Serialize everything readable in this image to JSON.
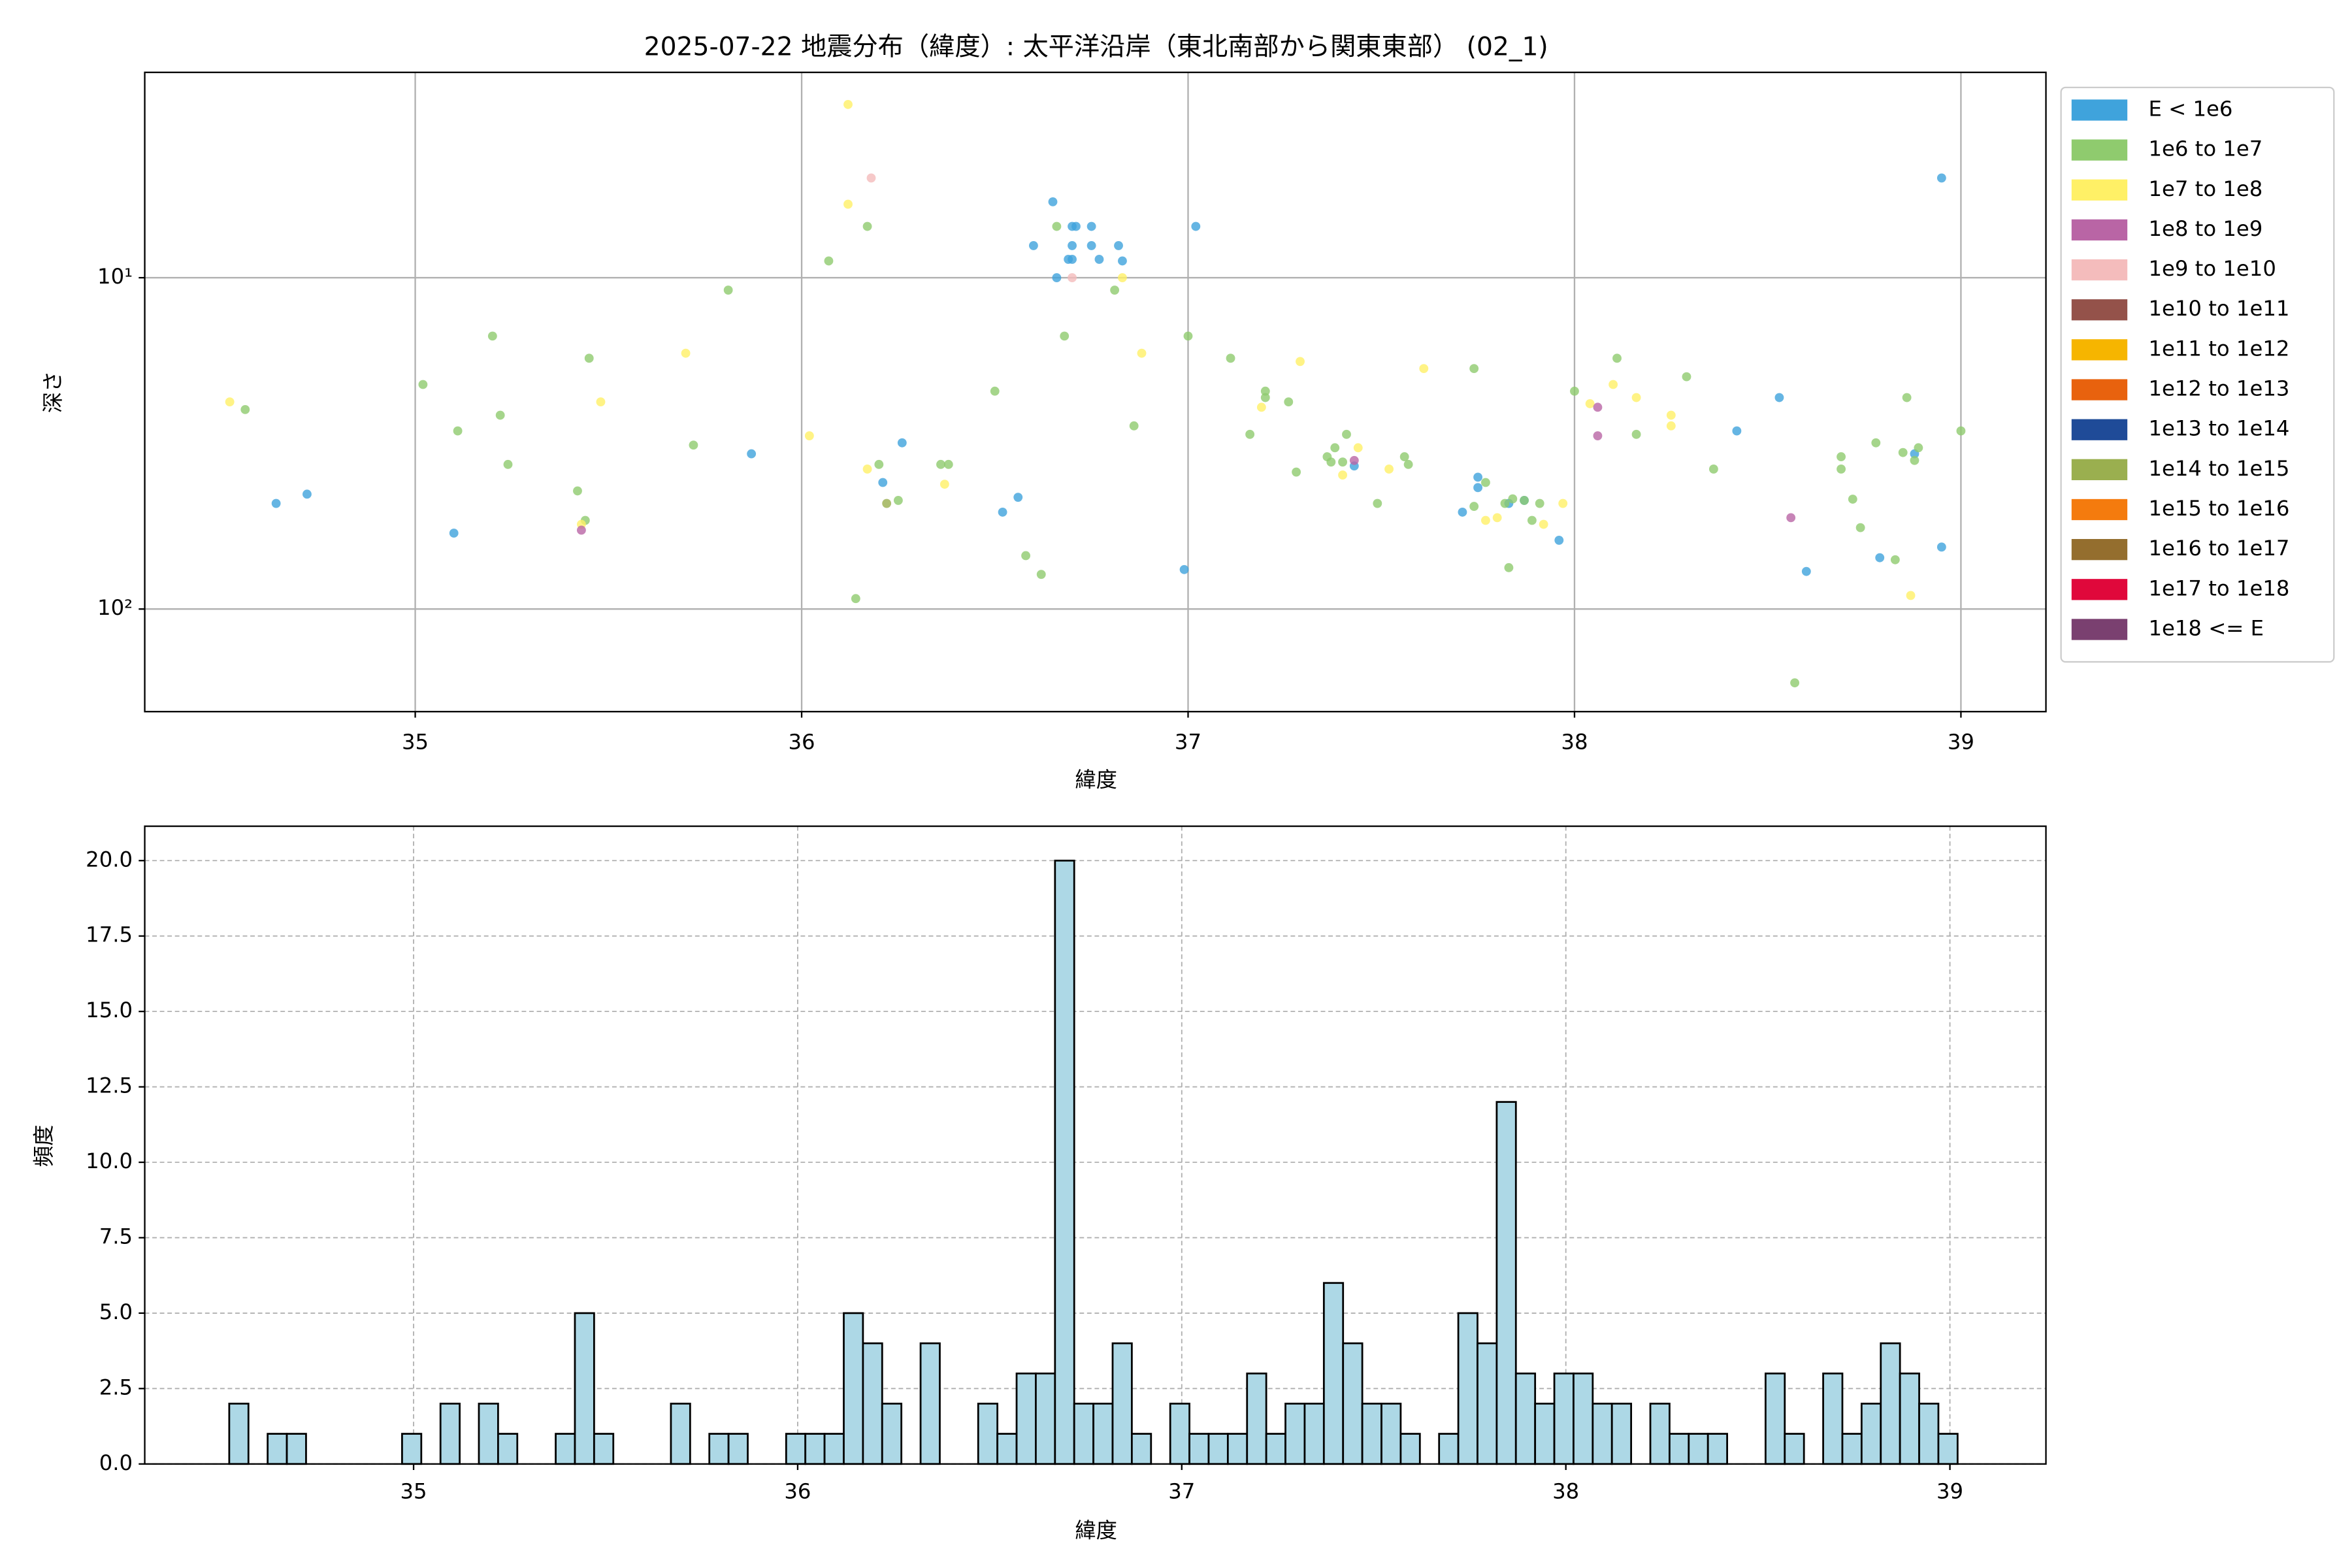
{
  "chart_data": [
    {
      "type": "scatter",
      "title": "2025-07-22 地震分布（緯度）: 太平洋沿岸（東北南部から関東東部） (02_1)",
      "x_label": "緯度",
      "y_label": "深さ",
      "xlim": [
        34.3,
        39.22
      ],
      "xticks": [
        35,
        36,
        37,
        38,
        39
      ],
      "ylim": [
        2.4,
        204
      ],
      "yscale": "log",
      "invert_y": true,
      "yticks": [
        {
          "value": 10,
          "label": "10¹"
        },
        {
          "value": 100,
          "label": "10²"
        }
      ],
      "grid": true,
      "legend": "outside upper right",
      "series": [
        {
          "name": "E < 1e6",
          "color": "#3fa3dc",
          "x": [
            34.64,
            34.72,
            35.1,
            35.87,
            36.21,
            36.26,
            36.52,
            36.56,
            36.6,
            36.65,
            36.66,
            36.69,
            36.7,
            36.7,
            36.71,
            36.7,
            36.75,
            36.75,
            36.77,
            36.82,
            36.83,
            37.02,
            36.99,
            37.43,
            37.71,
            37.75,
            37.75,
            37.83,
            37.87,
            37.96,
            38.42,
            38.53,
            38.6,
            38.79,
            38.88,
            38.95,
            38.95
          ],
          "values": [
            48,
            45,
            59,
            34,
            41.5,
            31.5,
            51,
            46,
            8,
            5.9,
            10,
            8.8,
            8,
            7,
            7,
            8.8,
            7,
            8,
            8.8,
            8,
            8.9,
            7,
            76,
            37,
            51,
            40,
            43,
            48,
            47,
            62,
            29,
            23,
            77,
            70,
            34,
            5,
            65
          ]
        },
        {
          "name": "1e6 to 1e7",
          "color": "#8fcb6e",
          "x": [
            34.56,
            35.02,
            35.11,
            35.2,
            35.22,
            35.24,
            35.42,
            35.44,
            35.45,
            35.72,
            35.81,
            36.07,
            36.17,
            36.14,
            36.2,
            36.25,
            36.36,
            36.38,
            36.5,
            36.58,
            36.62,
            36.66,
            36.68,
            36.81,
            36.86,
            37.0,
            37.11,
            37.16,
            37.2,
            37.2,
            37.26,
            37.28,
            37.36,
            37.38,
            37.37,
            37.4,
            37.41,
            37.49,
            37.56,
            37.57,
            37.74,
            37.74,
            37.77,
            37.82,
            37.83,
            37.84,
            37.87,
            37.89,
            37.91,
            38.0,
            38.11,
            38.16,
            38.29,
            38.36,
            38.57,
            38.69,
            38.69,
            38.72,
            38.74,
            38.78,
            38.83,
            38.85,
            38.86,
            38.88,
            38.89,
            39.0
          ],
          "values": [
            25,
            21,
            29,
            15,
            26,
            36.6,
            44,
            54,
            17.5,
            32,
            10.9,
            8.9,
            7,
            93,
            36.6,
            47,
            36.6,
            36.6,
            22,
            69,
            78.6,
            7,
            15,
            10.9,
            28,
            15,
            17.5,
            29.7,
            22,
            23,
            23.7,
            38.6,
            34.7,
            32.6,
            36,
            36,
            29.7,
            48,
            34.7,
            36.6,
            18.8,
            49,
            41.5,
            48,
            75,
            46.5,
            47,
            54,
            48,
            22,
            17.5,
            29.7,
            19.9,
            37.8,
            167,
            34.7,
            37.8,
            46.6,
            56.8,
            31.5,
            71,
            33.7,
            23,
            35.6,
            32.6,
            29
          ]
        },
        {
          "name": "1e7 to 1e8",
          "color": "#fff066",
          "x": [
            34.52,
            35.48,
            35.43,
            35.7,
            36.02,
            36.12,
            36.12,
            36.17,
            36.37,
            36.83,
            36.88,
            37.19,
            37.29,
            37.4,
            37.44,
            37.52,
            37.61,
            37.77,
            37.8,
            37.92,
            37.97,
            38.04,
            38.1,
            38.16,
            38.25,
            38.25,
            38.87
          ],
          "values": [
            23.7,
            23.7,
            55.5,
            16.9,
            30,
            3.0,
            6.0,
            37.8,
            42,
            10,
            16.9,
            24.6,
            17.9,
            39.4,
            32.6,
            37.8,
            18.8,
            54,
            53,
            55.5,
            48,
            24,
            21,
            23,
            28,
            26,
            91
          ]
        },
        {
          "name": "1e8 to 1e9",
          "color": "#b965a5",
          "x": [
            35.43,
            37.43,
            38.06,
            38.06,
            38.56
          ],
          "values": [
            57.8,
            35.6,
            30,
            24.6,
            53
          ]
        },
        {
          "name": "1e9 to 1e10",
          "color": "#f4bcbc",
          "x": [
            36.18,
            36.7
          ],
          "values": [
            5,
            10
          ]
        },
        {
          "name": "1e10 to 1e11",
          "color": "#94524a",
          "x": [],
          "values": []
        },
        {
          "name": "1e11 to 1e12",
          "color": "#f6b500",
          "x": [],
          "values": []
        },
        {
          "name": "1e12 to 1e13",
          "color": "#e8620e",
          "x": [],
          "values": []
        },
        {
          "name": "1e13 to 1e14",
          "color": "#1f4b98",
          "x": [],
          "values": []
        },
        {
          "name": "1e14 to 1e15",
          "color": "#9aaf4f",
          "x": [
            36.22
          ],
          "values": [
            48
          ]
        },
        {
          "name": "1e15 to 1e16",
          "color": "#f47b0e",
          "x": [],
          "values": []
        },
        {
          "name": "1e16 to 1e17",
          "color": "#946e2e",
          "x": [],
          "values": []
        },
        {
          "name": "1e17 to 1e18",
          "color": "#e0083b",
          "x": [],
          "values": []
        },
        {
          "name": "1e18 <= E",
          "color": "#7a4070",
          "x": [],
          "values": []
        }
      ]
    },
    {
      "type": "histogram",
      "x_label": "緯度",
      "y_label": "頻度",
      "color": "#add8e6",
      "edgecolor": "#000000",
      "grid": true,
      "xlim": [
        34.3,
        39.25
      ],
      "xticks": [
        35,
        36,
        37,
        38,
        39
      ],
      "ylim": [
        0,
        21.14
      ],
      "yticks": [
        {
          "value": 0,
          "label": "0.0"
        },
        2.5,
        {
          "value": 5,
          "label": "5.0"
        },
        7.5,
        {
          "value": 10,
          "label": "10.0"
        },
        12.5,
        {
          "value": 15,
          "label": "15.0"
        },
        17.5,
        {
          "value": 20,
          "label": "20.0"
        }
      ],
      "bins": [
        34.52,
        34.57,
        34.62,
        34.67,
        34.72,
        34.77,
        34.82,
        34.87,
        34.92,
        34.97,
        35.02,
        35.07,
        35.12,
        35.17,
        35.22,
        35.27,
        35.32,
        35.37,
        35.42,
        35.47,
        35.52,
        35.57,
        35.62,
        35.67,
        35.72,
        35.77,
        35.82,
        35.87,
        35.92,
        35.97,
        36.02,
        36.07,
        36.12,
        36.17,
        36.22,
        36.27,
        36.32,
        36.37,
        36.42,
        36.47,
        36.52,
        36.57,
        36.62,
        36.67,
        36.72,
        36.77,
        36.82,
        36.87,
        36.92,
        36.97,
        37.02,
        37.07,
        37.12,
        37.17,
        37.22,
        37.27,
        37.32,
        37.37,
        37.42,
        37.47,
        37.52,
        37.57,
        37.62,
        37.67,
        37.72,
        37.77,
        37.82,
        37.87,
        37.92,
        37.97,
        38.02,
        38.07,
        38.12,
        38.17,
        38.22,
        38.27,
        38.32,
        38.37,
        38.42,
        38.47,
        38.52,
        38.57,
        38.62,
        38.67,
        38.72,
        38.77,
        38.82,
        38.87,
        38.92,
        38.97,
        39.02
      ],
      "values": [
        2,
        0,
        1,
        1,
        0,
        0,
        0,
        0,
        0,
        1,
        0,
        2,
        0,
        2,
        1,
        0,
        0,
        1,
        5,
        1,
        0,
        0,
        0,
        2,
        0,
        1,
        1,
        0,
        0,
        1,
        1,
        1,
        5,
        4,
        2,
        0,
        4,
        0,
        0,
        2,
        1,
        3,
        3,
        20,
        2,
        2,
        4,
        1,
        0,
        2,
        1,
        1,
        1,
        3,
        1,
        2,
        2,
        6,
        4,
        2,
        2,
        1,
        0,
        1,
        5,
        4,
        12,
        3,
        2,
        3,
        3,
        2,
        2,
        0,
        2,
        1,
        1,
        1,
        0,
        0,
        3,
        1,
        0,
        3,
        1,
        2,
        4,
        3,
        2,
        1
      ]
    }
  ]
}
